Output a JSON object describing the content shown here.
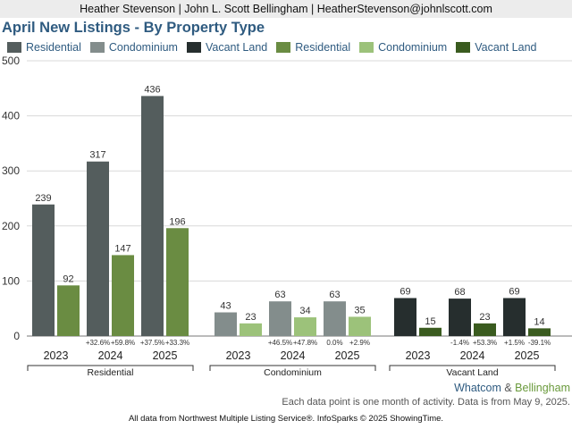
{
  "header": {
    "text": "Heather Stevenson | John L. Scott Bellingham | HeatherStevenson@johnlscott.com"
  },
  "title": "April New Listings - By Property Type",
  "legend": [
    {
      "label": "Residential",
      "color": "#545d5d"
    },
    {
      "label": "Condominium",
      "color": "#838d8c"
    },
    {
      "label": "Vacant Land",
      "color": "#262e2e"
    },
    {
      "label": "Residential",
      "color": "#6a8c42"
    },
    {
      "label": "Condominium",
      "color": "#9cc27a"
    },
    {
      "label": "Vacant Land",
      "color": "#3a5b1f"
    }
  ],
  "chart_data": {
    "type": "bar",
    "ylim": [
      0,
      500
    ],
    "yticks": [
      "0",
      "100",
      "200",
      "300",
      "400",
      "500"
    ],
    "grid": true,
    "legend_position": "top",
    "groups": [
      {
        "label": "Residential",
        "dark_color": "#545d5d",
        "light_color": "#6a8c42",
        "years": [
          "2023",
          "2024",
          "2025"
        ],
        "dark_values": [
          239,
          317,
          436
        ],
        "light_values": [
          92,
          147,
          196
        ],
        "change_labels": [
          [
            "",
            ""
          ],
          [
            "+32.6%",
            "+59.8%"
          ],
          [
            "+37.5%",
            "+33.3%"
          ]
        ]
      },
      {
        "label": "Condominium",
        "dark_color": "#838d8c",
        "light_color": "#9cc27a",
        "years": [
          "2023",
          "2024",
          "2025"
        ],
        "dark_values": [
          43,
          63,
          63
        ],
        "light_values": [
          23,
          34,
          35
        ],
        "change_labels": [
          [
            "",
            ""
          ],
          [
            "+46.5%",
            "+47.8%"
          ],
          [
            "0.0%",
            "+2.9%"
          ]
        ]
      },
      {
        "label": "Vacant Land",
        "dark_color": "#262e2e",
        "light_color": "#3a5b1f",
        "years": [
          "2023",
          "2024",
          "2025"
        ],
        "dark_values": [
          69,
          68,
          69
        ],
        "light_values": [
          15,
          23,
          14
        ],
        "change_labels": [
          [
            "",
            ""
          ],
          [
            "-1.4%",
            "+53.3%"
          ],
          [
            "+1.5%",
            "-39.1%"
          ]
        ]
      }
    ]
  },
  "footer": {
    "market_part1": "Whatcom",
    "market_amp": " & ",
    "market_part2": "Bellingham",
    "note": "Each data point is one month of activity. Data is from May 9, 2025.",
    "source": "All data from Northwest Multiple Listing Service®. InfoSparks © 2025 ShowingTime."
  }
}
